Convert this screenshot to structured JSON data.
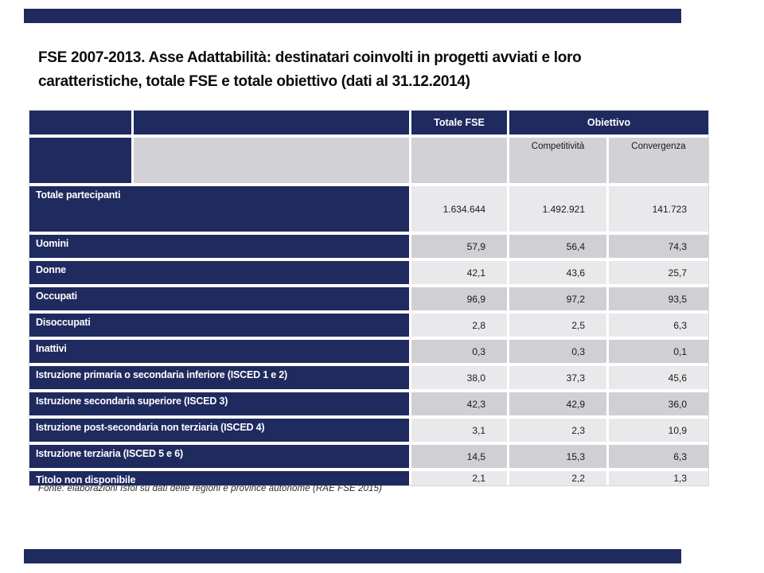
{
  "slide": {
    "title_lines": [
      "FSE 2007-2013.  Asse Adattabilità: destinatari coinvolti in progetti avviati e loro",
      "caratteristiche, totale FSE e totale obiettivo (dati al 31.12.2014)"
    ],
    "footer_source": "Fonte: elaborazioni Isfol su dati delle regioni e province autonome (RAE FSE 2015)"
  },
  "colors": {
    "navy": "#1F2A5F",
    "row_light_gray": "#E9E9EC",
    "row_dark_gray": "#CFCFD4",
    "header_gray": "#D1D1D6",
    "title_text": "#0c0c0c"
  },
  "table": {
    "header_row1": {
      "totale_fse": "Totale FSE",
      "obiettivo": "Obiettivo"
    },
    "header_row2": {
      "competitivita": "Competitività",
      "convergenza": "Convergenza"
    },
    "rows": [
      {
        "label": "Totale partecipanti",
        "totale_fse": "1.634.644",
        "competitivita": "1.492.921",
        "convergenza": "141.723"
      },
      {
        "label": "Uomini",
        "totale_fse": "57,9",
        "competitivita": "56,4",
        "convergenza": "74,3"
      },
      {
        "label": "Donne",
        "totale_fse": "42,1",
        "competitivita": "43,6",
        "convergenza": "25,7"
      },
      {
        "label": "Occupati",
        "totale_fse": "96,9",
        "competitivita": "97,2",
        "convergenza": "93,5"
      },
      {
        "label": "Disoccupati",
        "totale_fse": "2,8",
        "competitivita": "2,5",
        "convergenza": "6,3"
      },
      {
        "label": "Inattivi",
        "totale_fse": "0,3",
        "competitivita": "0,3",
        "convergenza": "0,1"
      },
      {
        "label": "Istruzione primaria o secondaria inferiore (ISCED 1 e 2)",
        "totale_fse": "38,0",
        "competitivita": "37,3",
        "convergenza": "45,6"
      },
      {
        "label": "Istruzione secondaria superiore (ISCED 3)",
        "totale_fse": "42,3",
        "competitivita": "42,9",
        "convergenza": "36,0"
      },
      {
        "label": "Istruzione post-secondaria non terziaria (ISCED 4)",
        "totale_fse": "3,1",
        "competitivita": "2,3",
        "convergenza": "10,9"
      },
      {
        "label": "Istruzione terziaria (ISCED 5 e 6)",
        "totale_fse": "14,5",
        "competitivita": "15,3",
        "convergenza": "6,3"
      },
      {
        "label": "Titolo non disponibile",
        "totale_fse": "2,1",
        "competitivita": "2,2",
        "convergenza": "1,3"
      }
    ]
  }
}
